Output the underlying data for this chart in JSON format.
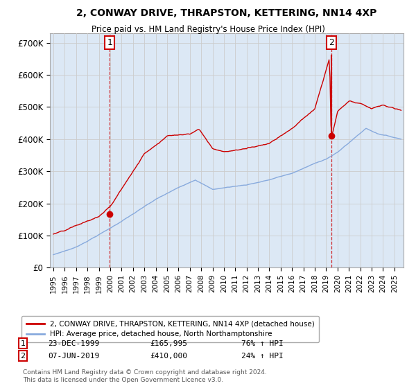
{
  "title": "2, CONWAY DRIVE, THRAPSTON, KETTERING, NN14 4XP",
  "subtitle": "Price paid vs. HM Land Registry's House Price Index (HPI)",
  "ylabel_ticks": [
    "£0",
    "£100K",
    "£200K",
    "£300K",
    "£400K",
    "£500K",
    "£600K",
    "£700K"
  ],
  "ytick_values": [
    0,
    100000,
    200000,
    300000,
    400000,
    500000,
    600000,
    700000
  ],
  "ylim": [
    0,
    730000
  ],
  "xlim_start": 1994.7,
  "xlim_end": 2025.8,
  "line_color_property": "#cc0000",
  "line_color_hpi": "#88aadd",
  "fill_color": "#dce8f5",
  "transaction1_x": 1999.97,
  "transaction1_y": 165995,
  "transaction1_date": "23-DEC-1999",
  "transaction1_price": "£165,995",
  "transaction1_change": "76% ↑ HPI",
  "transaction2_x": 2019.44,
  "transaction2_y": 410000,
  "transaction2_date": "07-JUN-2019",
  "transaction2_price": "£410,000",
  "transaction2_change": "24% ↑ HPI",
  "legend_property": "2, CONWAY DRIVE, THRAPSTON, KETTERING, NN14 4XP (detached house)",
  "legend_hpi": "HPI: Average price, detached house, North Northamptonshire",
  "footer": "Contains HM Land Registry data © Crown copyright and database right 2024.\nThis data is licensed under the Open Government Licence v3.0.",
  "background_color": "#ffffff",
  "grid_color": "#cccccc"
}
